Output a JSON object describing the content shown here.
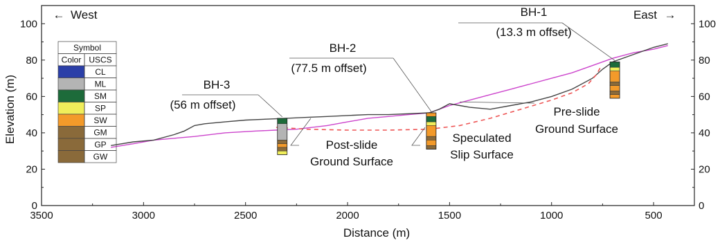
{
  "chart_data": {
    "type": "line",
    "xlabel": "Distance (m)",
    "ylabel": "Elevation (m)",
    "xlim": [
      3500,
      300
    ],
    "ylim": [
      0,
      110
    ],
    "x_ticks": [
      3500,
      3000,
      2500,
      2000,
      1500,
      1000,
      500
    ],
    "y_ticks": [
      0,
      20,
      40,
      60,
      80,
      100
    ],
    "grid": false,
    "direction_labels": {
      "left": "West",
      "right": "East"
    },
    "series": [
      {
        "name": "Pre-slide Ground Surface",
        "color": "#cc44cc",
        "style": "solid",
        "points": [
          [
            3160,
            32
          ],
          [
            3050,
            34
          ],
          [
            2950,
            36
          ],
          [
            2850,
            37
          ],
          [
            2750,
            38
          ],
          [
            2600,
            40
          ],
          [
            2450,
            41
          ],
          [
            2350,
            41.5
          ],
          [
            2250,
            42
          ],
          [
            2100,
            44
          ],
          [
            2000,
            46
          ],
          [
            1900,
            48
          ],
          [
            1800,
            49
          ],
          [
            1700,
            50
          ],
          [
            1600,
            51
          ],
          [
            1550,
            53
          ],
          [
            1500,
            55
          ],
          [
            1400,
            58
          ],
          [
            1300,
            61
          ],
          [
            1200,
            64
          ],
          [
            1100,
            67
          ],
          [
            1000,
            70
          ],
          [
            900,
            73
          ],
          [
            800,
            77
          ],
          [
            700,
            81
          ],
          [
            600,
            84
          ],
          [
            500,
            86
          ],
          [
            430,
            88
          ]
        ]
      },
      {
        "name": "Post-slide Ground Surface",
        "color": "#444444",
        "style": "solid",
        "points": [
          [
            3160,
            33
          ],
          [
            3050,
            35
          ],
          [
            2950,
            36
          ],
          [
            2850,
            39
          ],
          [
            2800,
            41
          ],
          [
            2750,
            44
          ],
          [
            2700,
            45
          ],
          [
            2600,
            46
          ],
          [
            2500,
            47
          ],
          [
            2400,
            47.5
          ],
          [
            2300,
            48
          ],
          [
            2200,
            48.5
          ],
          [
            2100,
            49
          ],
          [
            2000,
            49.5
          ],
          [
            1900,
            50
          ],
          [
            1800,
            50
          ],
          [
            1700,
            50.5
          ],
          [
            1600,
            51
          ],
          [
            1550,
            53
          ],
          [
            1500,
            56
          ],
          [
            1450,
            55
          ],
          [
            1400,
            54
          ],
          [
            1300,
            53
          ],
          [
            1200,
            55
          ],
          [
            1100,
            57
          ],
          [
            1000,
            60
          ],
          [
            900,
            64
          ],
          [
            800,
            70
          ],
          [
            750,
            75
          ],
          [
            700,
            79
          ],
          [
            600,
            83
          ],
          [
            500,
            87
          ],
          [
            430,
            89
          ]
        ]
      },
      {
        "name": "Speculated Slip Surface",
        "color": "#ee5555",
        "style": "dashed",
        "points": [
          [
            2350,
            43
          ],
          [
            2200,
            42
          ],
          [
            2000,
            41.5
          ],
          [
            1800,
            41.5
          ],
          [
            1600,
            42
          ],
          [
            1450,
            44
          ],
          [
            1300,
            48
          ],
          [
            1150,
            53
          ],
          [
            1000,
            58
          ],
          [
            900,
            62
          ],
          [
            820,
            67
          ],
          [
            780,
            72
          ],
          [
            760,
            76
          ]
        ]
      }
    ],
    "boreholes": [
      {
        "id": "BH-1",
        "offset": "(13.3 m offset)",
        "x": 690,
        "top": 79,
        "layers": [
          {
            "uscs": "SM",
            "bottom": 76
          },
          {
            "uscs": "SP",
            "bottom": 74
          },
          {
            "uscs": "SW",
            "bottom": 68
          },
          {
            "uscs": "GM",
            "bottom": 66
          },
          {
            "uscs": "SW",
            "bottom": 63
          },
          {
            "uscs": "GM",
            "bottom": 61
          },
          {
            "uscs": "SW",
            "bottom": 59
          }
        ]
      },
      {
        "id": "BH-2",
        "offset": "(77.5 m offset)",
        "x": 1590,
        "top": 51,
        "layers": [
          {
            "uscs": "SW",
            "bottom": 49
          },
          {
            "uscs": "SM",
            "bottom": 46
          },
          {
            "uscs": "SP",
            "bottom": 44
          },
          {
            "uscs": "SW",
            "bottom": 38
          },
          {
            "uscs": "GM",
            "bottom": 36
          },
          {
            "uscs": "SW",
            "bottom": 33
          },
          {
            "uscs": "GM",
            "bottom": 31
          }
        ]
      },
      {
        "id": "BH-3",
        "offset": "(56 m offset)",
        "x": 2320,
        "top": 48,
        "layers": [
          {
            "uscs": "SM",
            "bottom": 45
          },
          {
            "uscs": "ML",
            "bottom": 36
          },
          {
            "uscs": "GM",
            "bottom": 34
          },
          {
            "uscs": "SW",
            "bottom": 32
          },
          {
            "uscs": "GM",
            "bottom": 30
          },
          {
            "uscs": "SP",
            "bottom": 28
          }
        ]
      }
    ],
    "annotations": [
      {
        "text": "Pre-slide",
        "text2": "Ground Surface",
        "target": [
          1450,
          57
        ]
      },
      {
        "text": "Post-slide",
        "text2": "Ground Surface",
        "target": [
          2180,
          48
        ]
      },
      {
        "text": "Speculated",
        "text2": "Slip Surface",
        "target": [
          1620,
          43
        ]
      }
    ],
    "legend": {
      "title": "Symbol",
      "headers": [
        "Color",
        "USCS"
      ],
      "placement": "left",
      "entries": [
        {
          "uscs": "CL",
          "color": "#2b3fa8"
        },
        {
          "uscs": "ML",
          "color": "#b4b4b4"
        },
        {
          "uscs": "SM",
          "color": "#1d6b3a"
        },
        {
          "uscs": "SP",
          "color": "#f0ee5a"
        },
        {
          "uscs": "SW",
          "color": "#f39a2a"
        },
        {
          "uscs": "GM",
          "color": "#8a6a3a"
        },
        {
          "uscs": "GP",
          "color": "#8a6a3a"
        },
        {
          "uscs": "GW",
          "color": "#8a6a3a"
        }
      ]
    }
  }
}
